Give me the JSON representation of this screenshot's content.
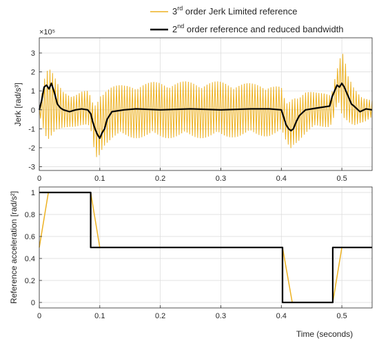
{
  "colors": {
    "jerk_limited": "#EDB120",
    "reduced_bandwidth": "#000000",
    "axes": "#262626",
    "grid": "#d9d9d9"
  },
  "legend": {
    "entry1": {
      "sup": "rd",
      "pre": "3",
      "post": " order Jerk Limited reference"
    },
    "entry2": {
      "sup": "nd",
      "pre": "2",
      "post": " order reference and reduced bandwidth"
    }
  },
  "chart_data": [
    {
      "type": "line",
      "ylabel": "Jerk [rad/s³]",
      "y_multiplier": "×10⁵",
      "xlim": [
        0,
        0.55
      ],
      "ylim": [
        -3.2,
        3.8
      ],
      "grid": true,
      "x_ticks": [
        "0",
        "0.1",
        "0.2",
        "0.3",
        "0.4",
        "0.5"
      ],
      "y_ticks": [
        "-3",
        "-2",
        "-1",
        "0",
        "1",
        "2",
        "3"
      ],
      "y_tick_values": [
        -3,
        -2,
        -1,
        0,
        1,
        2,
        3
      ],
      "x_tick_values": [
        0,
        0.1,
        0.2,
        0.3,
        0.4,
        0.5
      ],
      "series": [
        {
          "name": "3rd order Jerk Limited reference",
          "color": "#EDB120",
          "description": "high-frequency oscillation; envelope (upper / lower) in units of 1e5 rad/s^3",
          "envelope_x": [
            0,
            0.005,
            0.01,
            0.015,
            0.02,
            0.03,
            0.04,
            0.05,
            0.06,
            0.07,
            0.08,
            0.085,
            0.09,
            0.095,
            0.1,
            0.105,
            0.11,
            0.12,
            0.14,
            0.16,
            0.2,
            0.25,
            0.3,
            0.35,
            0.38,
            0.4,
            0.405,
            0.41,
            0.415,
            0.42,
            0.43,
            0.44,
            0.46,
            0.48,
            0.485,
            0.49,
            0.495,
            0.5,
            0.505,
            0.51,
            0.52,
            0.53,
            0.54,
            0.55
          ],
          "envelope_upper": [
            0.2,
            1.2,
            2.1,
            2.3,
            2.1,
            1.4,
            1.0,
            0.9,
            0.9,
            1.0,
            1.0,
            0.7,
            0.2,
            0.3,
            0.8,
            1.0,
            1.2,
            1.3,
            1.3,
            1.4,
            1.5,
            1.5,
            1.5,
            1.4,
            1.4,
            1.2,
            0.6,
            0.3,
            0.5,
            0.7,
            0.8,
            1.0,
            0.9,
            1.0,
            1.3,
            2.2,
            2.6,
            3.2,
            2.6,
            1.8,
            1.2,
            0.9,
            0.7,
            0.5
          ],
          "envelope_lower": [
            -0.2,
            -0.8,
            -1.4,
            -1.7,
            -1.6,
            -1.3,
            -1.0,
            -0.9,
            -0.9,
            -0.9,
            -1.0,
            -1.2,
            -2.2,
            -2.7,
            -2.4,
            -2.0,
            -1.8,
            -1.6,
            -1.5,
            -1.5,
            -1.5,
            -1.5,
            -1.5,
            -1.4,
            -1.4,
            -1.3,
            -1.8,
            -2.0,
            -2.2,
            -1.9,
            -1.6,
            -1.3,
            -1.0,
            -0.9,
            -0.6,
            0.1,
            0.4,
            -0.3,
            -0.6,
            -0.8,
            -0.9,
            -0.7,
            -0.6,
            -0.4
          ]
        },
        {
          "name": "2nd order reference and reduced bandwidth",
          "color": "#000000",
          "x": [
            0,
            0.004,
            0.008,
            0.012,
            0.016,
            0.02,
            0.025,
            0.03,
            0.035,
            0.04,
            0.05,
            0.06,
            0.07,
            0.08,
            0.085,
            0.088,
            0.092,
            0.096,
            0.1,
            0.104,
            0.108,
            0.112,
            0.12,
            0.14,
            0.16,
            0.2,
            0.25,
            0.3,
            0.35,
            0.38,
            0.4,
            0.404,
            0.408,
            0.412,
            0.416,
            0.42,
            0.425,
            0.43,
            0.44,
            0.46,
            0.48,
            0.484,
            0.488,
            0.492,
            0.496,
            0.5,
            0.504,
            0.508,
            0.512,
            0.516,
            0.52,
            0.53,
            0.54,
            0.55
          ],
          "y": [
            0,
            0.5,
            1.2,
            1.3,
            1.1,
            1.4,
            0.9,
            0.3,
            0.1,
            0.0,
            -0.1,
            0.0,
            0.05,
            0.0,
            -0.2,
            -0.6,
            -1.0,
            -1.3,
            -1.5,
            -1.2,
            -1.0,
            -0.5,
            -0.1,
            0.0,
            0.05,
            0.0,
            0.05,
            0.0,
            0.05,
            0.05,
            0.0,
            -0.4,
            -0.8,
            -1.0,
            -1.1,
            -1.0,
            -0.6,
            -0.3,
            0.0,
            0.1,
            0.2,
            0.7,
            1.0,
            1.3,
            1.2,
            1.4,
            1.2,
            0.9,
            0.6,
            0.3,
            0.2,
            -0.1,
            0.05,
            0.0
          ]
        }
      ]
    },
    {
      "type": "line",
      "ylabel": "Reference acceleration [rad/s²]",
      "xlabel": "Time (seconds)",
      "xlim": [
        0,
        0.55
      ],
      "ylim": [
        -0.05,
        1.05
      ],
      "grid": true,
      "x_ticks": [
        "0",
        "0.1",
        "0.2",
        "0.3",
        "0.4",
        "0.5"
      ],
      "y_ticks": [
        "0",
        "0.2",
        "0.4",
        "0.6",
        "0.8",
        "1"
      ],
      "y_tick_values": [
        0,
        0.2,
        0.4,
        0.6,
        0.8,
        1.0
      ],
      "x_tick_values": [
        0,
        0.1,
        0.2,
        0.3,
        0.4,
        0.5
      ],
      "series": [
        {
          "name": "3rd order Jerk Limited reference",
          "color": "#EDB120",
          "x": [
            0,
            0.015,
            0.085,
            0.1,
            0.402,
            0.418,
            0.485,
            0.5,
            0.55
          ],
          "y": [
            0.5,
            1.0,
            1.0,
            0.5,
            0.5,
            0.0,
            0.0,
            0.5,
            0.5
          ]
        },
        {
          "name": "2nd order reference and reduced bandwidth",
          "color": "#000000",
          "x": [
            0,
            0.085,
            0.085,
            0.402,
            0.402,
            0.485,
            0.485,
            0.55
          ],
          "y": [
            1.0,
            1.0,
            0.5,
            0.5,
            0.0,
            0.0,
            0.5,
            0.5
          ]
        }
      ]
    }
  ]
}
